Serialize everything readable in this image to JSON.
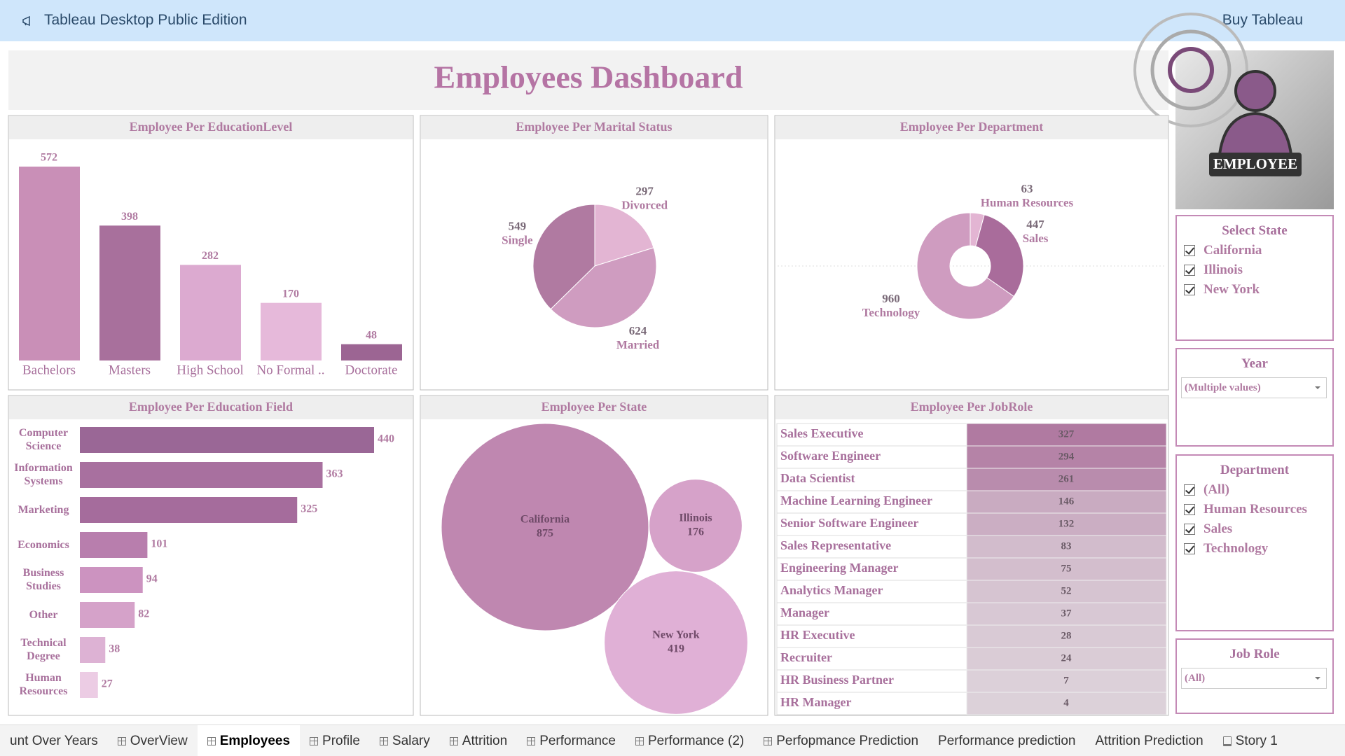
{
  "app": {
    "title": "Tableau Desktop Public Edition",
    "action": "Buy Tableau"
  },
  "dashboard": {
    "title": "Employees Dashboard",
    "image_caption": "EMPLOYEE"
  },
  "chart_data": [
    {
      "type": "bar",
      "title": "Employee Per EducationLevel",
      "categories": [
        "Bachelors",
        "Masters",
        "High School",
        "No Formal ..",
        "Doctorate"
      ],
      "values": [
        572,
        398,
        282,
        170,
        48
      ],
      "colors": [
        "#c98fb7",
        "#a8709c",
        "#dcaad0",
        "#e6b9da",
        "#9c6593"
      ]
    },
    {
      "type": "pie",
      "title": "Employee Per Marital Status",
      "categories": [
        "Divorced",
        "Married",
        "Single"
      ],
      "values": [
        297,
        624,
        549
      ],
      "colors": [
        "#e3b5d3",
        "#cf9cc0",
        "#b07aa1"
      ]
    },
    {
      "type": "donut",
      "title": "Employee Per Department",
      "categories": [
        "Human Resources",
        "Sales",
        "Technology"
      ],
      "values": [
        63,
        447,
        960
      ],
      "colors": [
        "#e3b5d3",
        "#a96c9b",
        "#cf9cc0"
      ]
    },
    {
      "type": "hbar",
      "title": "Employee Per Education Field",
      "categories": [
        "Computer Science",
        "Information Systems",
        "Marketing",
        "Economics",
        "Business Studies",
        "Other",
        "Technical Degree",
        "Human Resources"
      ],
      "values": [
        440,
        363,
        325,
        101,
        94,
        82,
        38,
        27
      ],
      "colors": [
        "#9a6796",
        "#a8709f",
        "#a56c9c",
        "#b87ead",
        "#cc93c0",
        "#d5a2c9",
        "#ddb2d4",
        "#eccce4"
      ]
    },
    {
      "type": "bubble",
      "title": "Employee Per State",
      "categories": [
        "California",
        "Illinois",
        "New York"
      ],
      "values": [
        875,
        176,
        419
      ],
      "colors": [
        "#bf87b0",
        "#d6a2c9",
        "#e0b0d6"
      ]
    },
    {
      "type": "table",
      "title": "Employee Per JobRole",
      "categories": [
        "Sales Executive",
        "Software Engineer",
        "Data Scientist",
        "Machine Learning Engineer",
        "Senior Software Engineer",
        "Sales Representative",
        "Engineering Manager",
        "Analytics Manager",
        "Manager",
        "HR Executive",
        "Recruiter",
        "HR Business Partner",
        "HR Manager"
      ],
      "values": [
        327,
        294,
        261,
        146,
        132,
        83,
        75,
        52,
        37,
        28,
        24,
        7,
        4
      ]
    }
  ],
  "filters": [
    {
      "title": "Select State",
      "kind": "checklist",
      "items": [
        "California",
        "Illinois",
        "New York"
      ]
    },
    {
      "title": "Year",
      "kind": "dropdown",
      "value": "(Multiple values)"
    },
    {
      "title": "Department",
      "kind": "checklist",
      "items": [
        "(All)",
        "Human Resources",
        "Sales",
        "Technology"
      ]
    },
    {
      "title": "Job Role",
      "kind": "dropdown",
      "value": "(All)"
    }
  ],
  "tabs": [
    {
      "label": "unt Over Years"
    },
    {
      "label": "OverView",
      "icon": "sheet"
    },
    {
      "label": "Employees",
      "icon": "sheet",
      "active": true
    },
    {
      "label": "Profile",
      "icon": "sheet"
    },
    {
      "label": "Salary",
      "icon": "sheet"
    },
    {
      "label": "Attrition",
      "icon": "sheet"
    },
    {
      "label": "Performance",
      "icon": "sheet"
    },
    {
      "label": "Performance (2)",
      "icon": "sheet"
    },
    {
      "label": "Perfopmance Prediction",
      "icon": "sheet"
    },
    {
      "label": "Performance prediction"
    },
    {
      "label": "Attrition Prediction"
    },
    {
      "label": "Story 1",
      "icon": "story"
    }
  ]
}
